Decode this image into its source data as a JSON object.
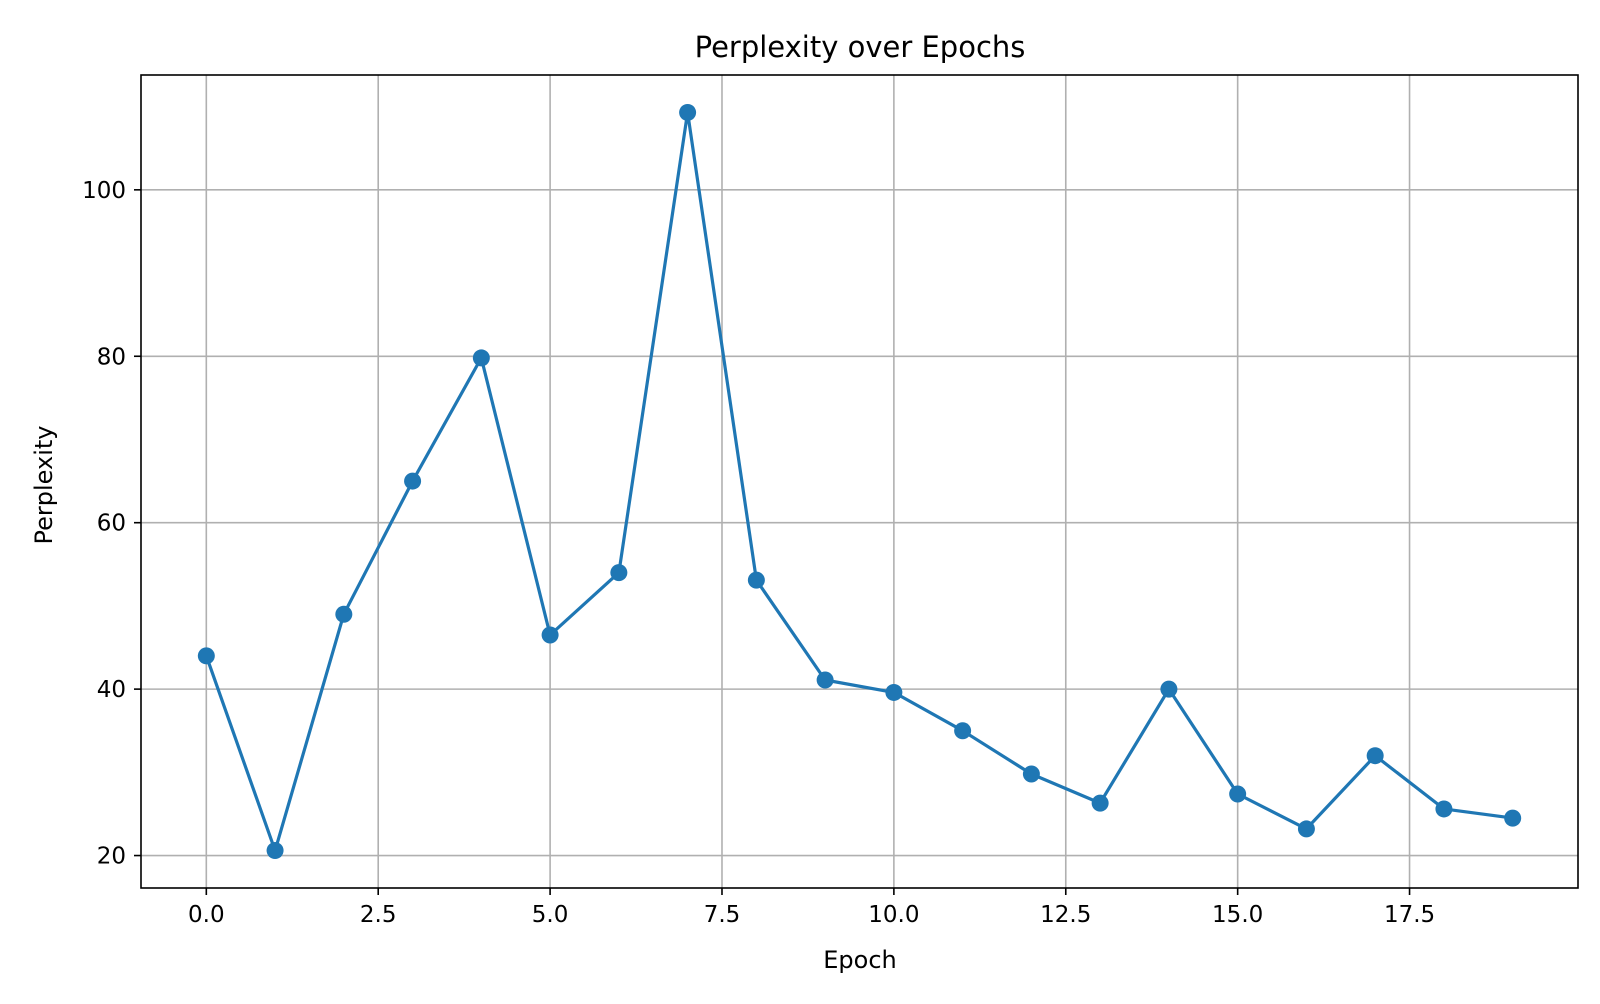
{
  "chart_data": {
    "type": "line",
    "title": "Perplexity over Epochs",
    "xlabel": "Epoch",
    "ylabel": "Perplexity",
    "x": [
      0,
      1,
      2,
      3,
      4,
      5,
      6,
      7,
      8,
      9,
      10,
      11,
      12,
      13,
      14,
      15,
      16,
      17,
      18,
      19
    ],
    "series": [
      {
        "values": [
          44.0,
          20.6,
          49.0,
          65.0,
          79.8,
          46.5,
          54.0,
          109.3,
          53.1,
          41.1,
          39.6,
          35.0,
          29.8,
          26.3,
          40.0,
          27.4,
          23.2,
          32.0,
          25.6,
          24.5
        ]
      }
    ],
    "xlim": [
      -0.95,
      19.95
    ],
    "ylim": [
      16.1,
      113.8
    ],
    "xticks": [
      0.0,
      2.5,
      5.0,
      7.5,
      10.0,
      12.5,
      15.0,
      17.5
    ],
    "xtick_labels": [
      "0.0",
      "2.5",
      "5.0",
      "7.5",
      "10.0",
      "12.5",
      "15.0",
      "17.5"
    ],
    "yticks": [
      20,
      40,
      60,
      80,
      100
    ],
    "ytick_labels": [
      "20",
      "40",
      "60",
      "80",
      "100"
    ],
    "grid": true,
    "line_color": "#1f77b4",
    "marker": "circle",
    "grid_color": "#b0b0b0"
  }
}
